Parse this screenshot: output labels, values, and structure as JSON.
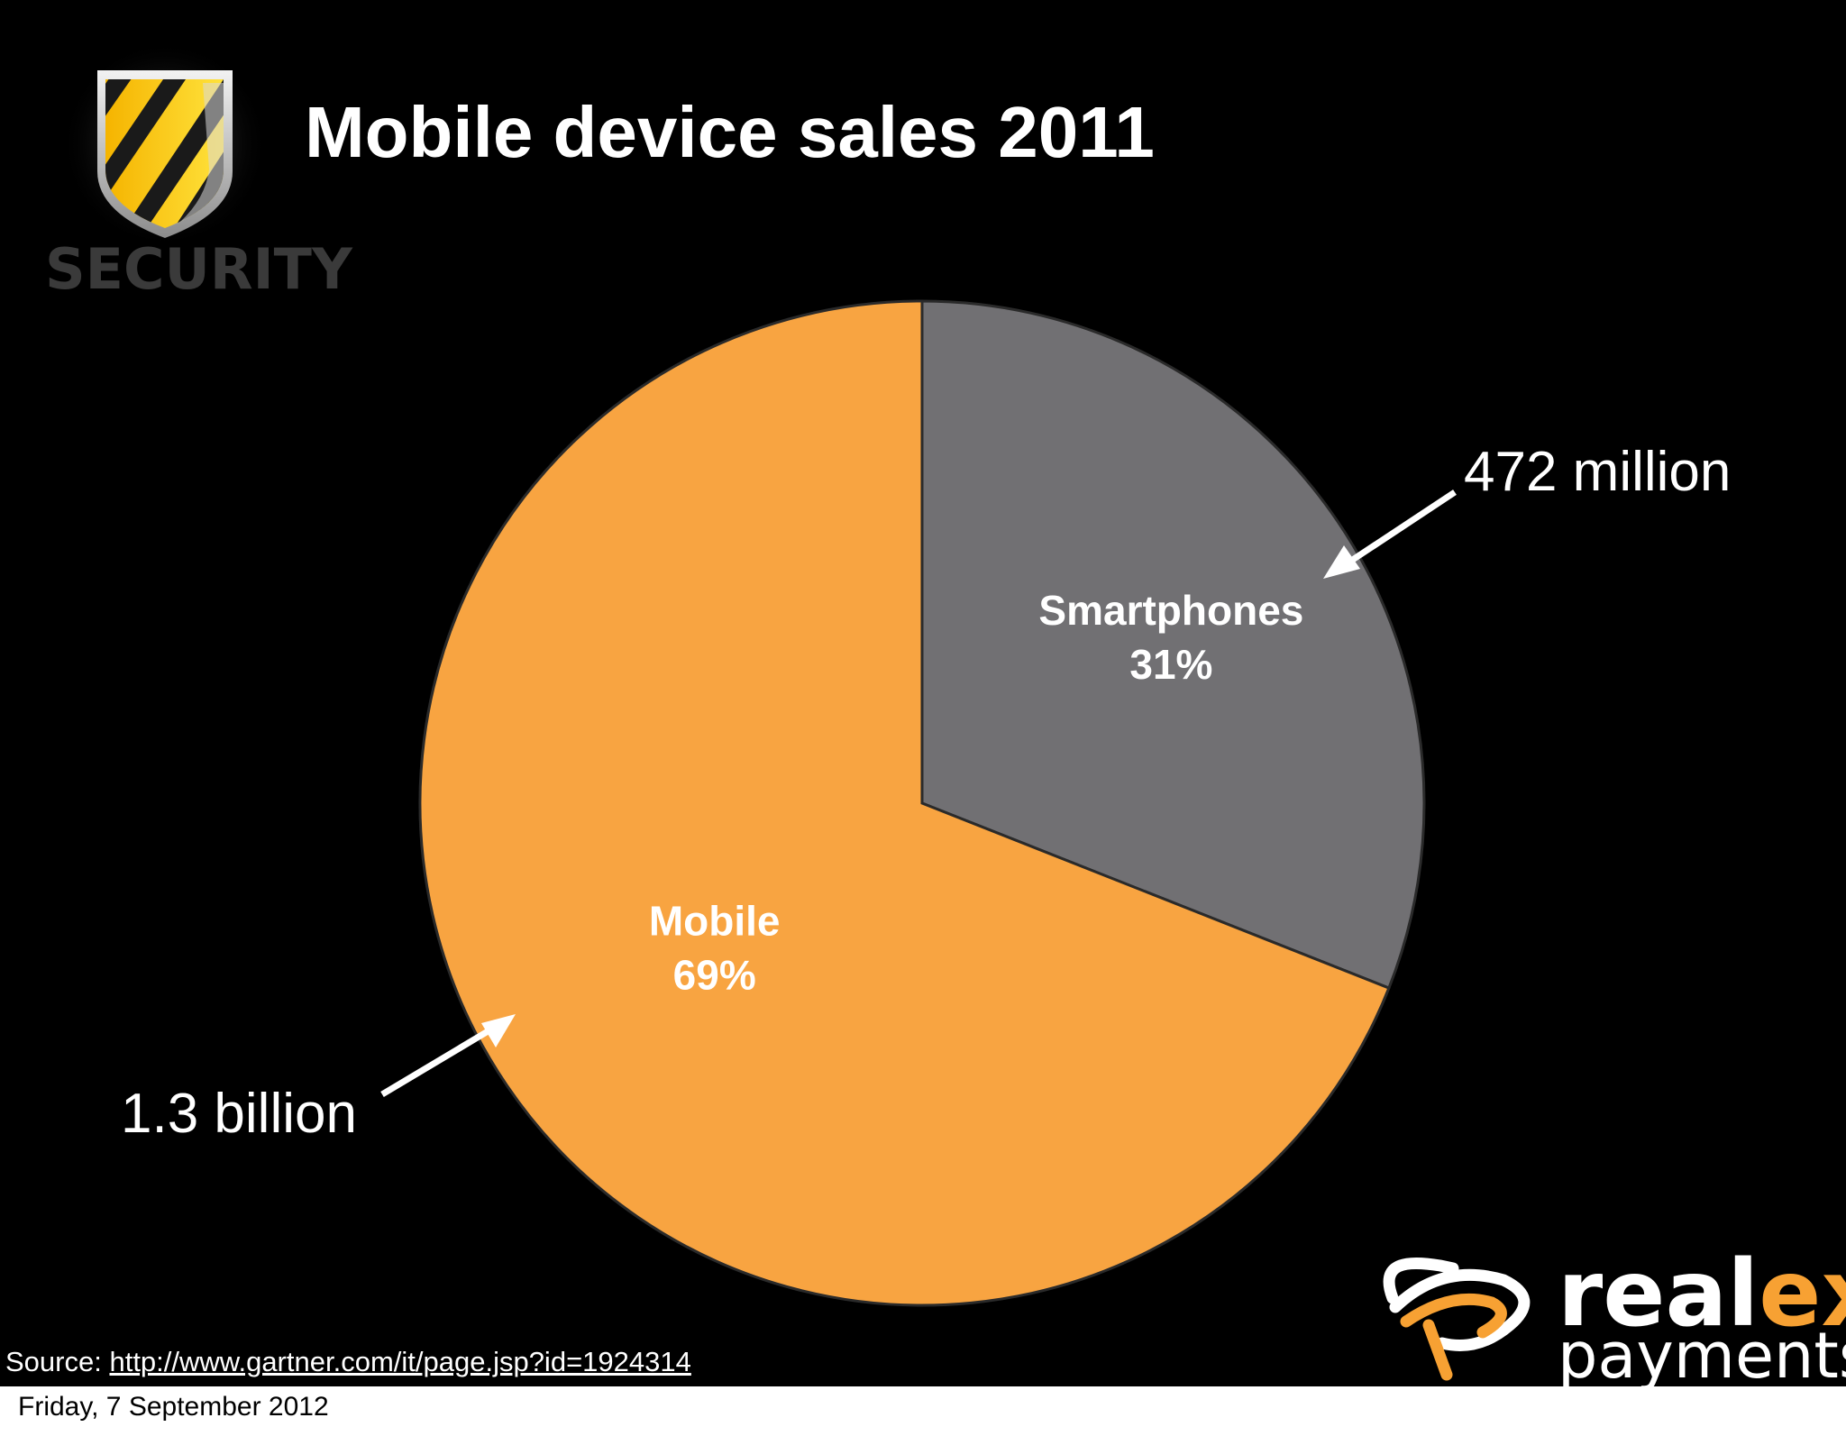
{
  "slide": {
    "title": "Mobile device sales 2011",
    "logo_word": "SECURITY",
    "source_prefix": "Source:",
    "source_link": "http://www.gartner.com/it/page.jsp?id=1924314",
    "brand": {
      "top_a": "real",
      "top_b": "ex",
      "bottom": "payments",
      "accent_color": "#f7a133"
    },
    "callouts": {
      "smartphones": "472 million",
      "mobile": "1.3 billion"
    }
  },
  "chart_data": {
    "type": "pie",
    "title": "Mobile device sales 2011",
    "slices": [
      {
        "label": "Smartphones",
        "percent_label": "31%",
        "value": 31,
        "color": "#717073"
      },
      {
        "label": "Mobile",
        "percent_label": "69%",
        "value": 69,
        "color": "#f8a441"
      }
    ],
    "start": "12 o'clock, clockwise",
    "legend": "none"
  },
  "footer": {
    "date": "Friday, 7 September 2012"
  }
}
